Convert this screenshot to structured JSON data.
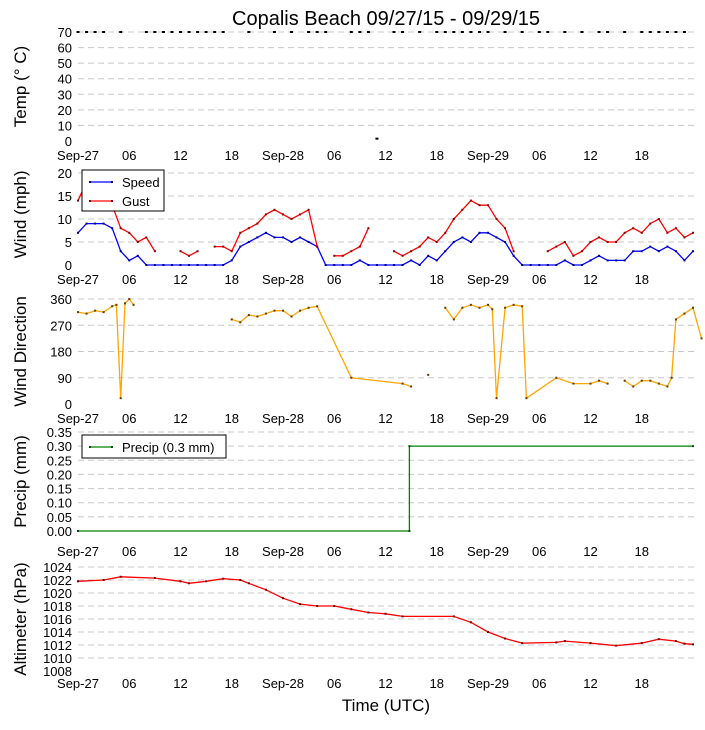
{
  "chart_data": {
    "title": "Copalis Beach 09/27/15 - 09/29/15",
    "xlabel": "Time (UTC)",
    "x_units": "hours since Sep-27 00:00 UTC",
    "xlim": [
      0,
      72
    ],
    "x_ticks": [
      {
        "h": 0,
        "label": "Sep-27"
      },
      {
        "h": 6,
        "label": "06"
      },
      {
        "h": 12,
        "label": "12"
      },
      {
        "h": 18,
        "label": "18"
      },
      {
        "h": 24,
        "label": "Sep-28"
      },
      {
        "h": 30,
        "label": "06"
      },
      {
        "h": 36,
        "label": "12"
      },
      {
        "h": 42,
        "label": "18"
      },
      {
        "h": 48,
        "label": "Sep-29"
      },
      {
        "h": 54,
        "label": "06"
      },
      {
        "h": 60,
        "label": "12"
      },
      {
        "h": 66,
        "label": "18"
      }
    ],
    "panels": [
      {
        "id": "temp",
        "type": "line",
        "ylabel": "Temp (° C)",
        "ylim": [
          0,
          70
        ],
        "yticks": [
          "0",
          "10",
          "20",
          "30",
          "40",
          "50",
          "60",
          "70"
        ],
        "ytick_values": [
          0,
          10,
          20,
          30,
          40,
          50,
          60,
          70
        ],
        "grid": true,
        "legend": null,
        "series": [
          {
            "name": "Temp",
            "color": "#000000",
            "marker_color": "#000000",
            "line": false,
            "x": [
              0,
              1,
              2,
              3,
              5,
              8,
              9,
              10,
              11,
              12,
              13,
              14,
              15,
              16,
              17,
              20,
              23,
              25,
              27,
              28,
              29,
              32,
              33,
              34,
              35,
              37,
              38,
              40,
              42,
              43,
              44,
              45,
              46,
              47,
              48,
              50,
              52,
              54,
              55,
              57,
              59,
              61,
              62,
              64,
              66,
              67,
              68,
              69,
              70,
              71
            ],
            "y": [
              70,
              70,
              70,
              70,
              70,
              70,
              70,
              70,
              70,
              70,
              70,
              70,
              70,
              70,
              70,
              70,
              70,
              70,
              70,
              70,
              70,
              70,
              70,
              70,
              1.5,
              70,
              70,
              70,
              70,
              70,
              70,
              70,
              70,
              70,
              70,
              70,
              70,
              70,
              70,
              70,
              70,
              70,
              70,
              70,
              70,
              70,
              70,
              70,
              70,
              70
            ]
          }
        ]
      },
      {
        "id": "wind",
        "type": "line",
        "ylabel": "Wind (mph)",
        "ylim": [
          0,
          22
        ],
        "yticks": [
          "0",
          "5",
          "10",
          "15",
          "20"
        ],
        "ytick_values": [
          0,
          5,
          10,
          15,
          20
        ],
        "grid": true,
        "legend": "top-left",
        "series": [
          {
            "name": "Speed",
            "color": "#0000ff",
            "marker_color": "#00008b",
            "line": true,
            "x": [
              0,
              1,
              2,
              3,
              4,
              5,
              6,
              7,
              8,
              9,
              10,
              11,
              12,
              13,
              14,
              15,
              16,
              17,
              18,
              19,
              20,
              21,
              22,
              23,
              24,
              25,
              26,
              27,
              28,
              29,
              30,
              31,
              32,
              33,
              34,
              35,
              36,
              37,
              38,
              39,
              40,
              41,
              42,
              43,
              44,
              45,
              46,
              47,
              48,
              49,
              50,
              51,
              52,
              53,
              54,
              55,
              56,
              57,
              58,
              59,
              60,
              61,
              62,
              63,
              64,
              65,
              66,
              67,
              68,
              69,
              70,
              71,
              72
            ],
            "y": [
              7,
              9,
              9,
              9,
              8,
              3,
              1,
              2,
              0,
              0,
              0,
              0,
              0,
              0,
              0,
              0,
              0,
              0,
              1,
              4,
              5,
              6,
              7,
              6,
              6,
              5,
              6,
              5,
              4,
              0,
              0,
              0,
              0,
              1,
              0,
              0,
              0,
              0,
              0,
              1,
              0,
              2,
              1,
              3,
              5,
              6,
              5,
              7,
              7,
              6,
              5,
              2,
              0,
              0,
              0,
              0,
              0,
              1,
              0,
              0,
              1,
              2,
              1,
              1,
              1,
              3,
              3,
              4,
              3,
              4,
              3,
              1,
              3
            ]
          },
          {
            "name": "Gust",
            "color": "#ff0000",
            "marker_color": "#8b0000",
            "line": true,
            "x": [
              0,
              1,
              2,
              3,
              4,
              5,
              6,
              7,
              8,
              9,
              10,
              11,
              12,
              13,
              14,
              15,
              16,
              17,
              18,
              19,
              20,
              21,
              22,
              23,
              24,
              25,
              26,
              27,
              28,
              29,
              30,
              31,
              32,
              33,
              34,
              35,
              36,
              37,
              38,
              39,
              40,
              41,
              42,
              43,
              44,
              45,
              46,
              47,
              48,
              49,
              50,
              51,
              52,
              53,
              54,
              55,
              56,
              57,
              58,
              59,
              60,
              61,
              62,
              63,
              64,
              65,
              66,
              67,
              68,
              69,
              70,
              71,
              72
            ],
            "y": [
              14,
              18,
              null,
              null,
              13,
              8,
              7,
              5,
              6,
              3,
              null,
              null,
              3,
              2,
              3,
              null,
              4,
              4,
              3,
              7,
              8,
              9,
              11,
              12,
              11,
              10,
              11,
              12,
              4,
              null,
              2,
              2,
              3,
              4,
              8,
              null,
              null,
              3,
              2,
              3,
              4,
              6,
              5,
              7,
              10,
              12,
              14,
              13,
              13,
              10,
              8,
              3,
              null,
              null,
              null,
              3,
              4,
              5,
              2,
              3,
              5,
              6,
              5,
              5,
              7,
              8,
              7,
              9,
              10,
              7,
              8,
              6,
              7
            ]
          }
        ]
      },
      {
        "id": "dir",
        "type": "line",
        "ylabel": "Wind Direction",
        "ylim": [
          0,
          360
        ],
        "yticks": [
          "0",
          "90",
          "180",
          "270",
          "360"
        ],
        "ytick_values": [
          0,
          90,
          180,
          270,
          360
        ],
        "grid": true,
        "legend": null,
        "series": [
          {
            "name": "Direction",
            "color": "#ffa500",
            "marker_color": "#5c3a00",
            "line": true,
            "x": [
              0,
              1,
              2,
              3,
              4,
              4.5,
              5,
              5.5,
              6,
              6.5,
              7,
              8,
              9,
              18,
              19,
              20,
              21,
              22,
              23,
              24,
              25,
              26,
              27,
              28,
              32,
              38,
              39,
              40,
              41,
              42,
              43,
              44,
              45,
              46,
              47,
              48,
              48.5,
              49,
              50,
              51,
              52,
              52.5,
              56,
              58,
              60,
              61,
              62,
              63,
              64,
              65,
              66,
              67,
              68,
              69,
              69.5,
              70,
              71,
              72,
              73
            ],
            "y": [
              315,
              310,
              320,
              315,
              335,
              340,
              20,
              345,
              360,
              340,
              null,
              null,
              null,
              290,
              280,
              305,
              300,
              310,
              320,
              320,
              300,
              320,
              330,
              335,
              90,
              70,
              60,
              null,
              100,
              null,
              330,
              290,
              330,
              340,
              330,
              340,
              325,
              20,
              330,
              340,
              335,
              20,
              90,
              70,
              70,
              80,
              70,
              null,
              80,
              60,
              80,
              80,
              70,
              60,
              90,
              290,
              310,
              330,
              225
            ]
          }
        ]
      },
      {
        "id": "precip",
        "type": "line",
        "ylabel": "Precip (mm)",
        "ylim": [
          0,
          0.35
        ],
        "yticks": [
          "0.00",
          "0.05",
          "0.10",
          "0.15",
          "0.20",
          "0.25",
          "0.30",
          "0.35"
        ],
        "ytick_values": [
          0,
          0.05,
          0.1,
          0.15,
          0.2,
          0.25,
          0.3,
          0.35
        ],
        "grid": true,
        "legend": "top-left",
        "series": [
          {
            "name": "Precip (0.3 mm)",
            "color": "#008000",
            "marker_color": "#005000",
            "line": true,
            "x": [
              0,
              38.8,
              38.8,
              72
            ],
            "y": [
              0,
              0,
              0.3,
              0.3
            ]
          }
        ]
      },
      {
        "id": "altimeter",
        "type": "line",
        "ylabel": "Altimeter (hPa)",
        "ylim": [
          1008,
          1024
        ],
        "yticks": [
          "1008",
          "1010",
          "1012",
          "1014",
          "1016",
          "1018",
          "1020",
          "1022",
          "1024"
        ],
        "ytick_values": [
          1008,
          1010,
          1012,
          1014,
          1016,
          1018,
          1020,
          1022,
          1024
        ],
        "grid": true,
        "legend": null,
        "series": [
          {
            "name": "Altimeter",
            "color": "#ff0000",
            "marker_color": "#6b0000",
            "line": true,
            "x": [
              0,
              3,
              5,
              9,
              12,
              13,
              15,
              17,
              19,
              20,
              22,
              24,
              26,
              28,
              30,
              32,
              34,
              36,
              38,
              44,
              46,
              48,
              50,
              52,
              56,
              57,
              60,
              63,
              66,
              68,
              70,
              71,
              72
            ],
            "y": [
              1021.8,
              1022.0,
              1022.5,
              1022.3,
              1021.8,
              1021.5,
              1021.8,
              1022.2,
              1022.0,
              1021.5,
              1020.5,
              1019.2,
              1018.3,
              1018.0,
              1018.0,
              1017.5,
              1017.0,
              1016.8,
              1016.4,
              1016.4,
              1015.5,
              1014.0,
              1013.0,
              1012.3,
              1012.4,
              1012.6,
              1012.3,
              1011.9,
              1012.3,
              1012.9,
              1012.6,
              1012.2,
              1012.1
            ]
          }
        ]
      }
    ]
  }
}
